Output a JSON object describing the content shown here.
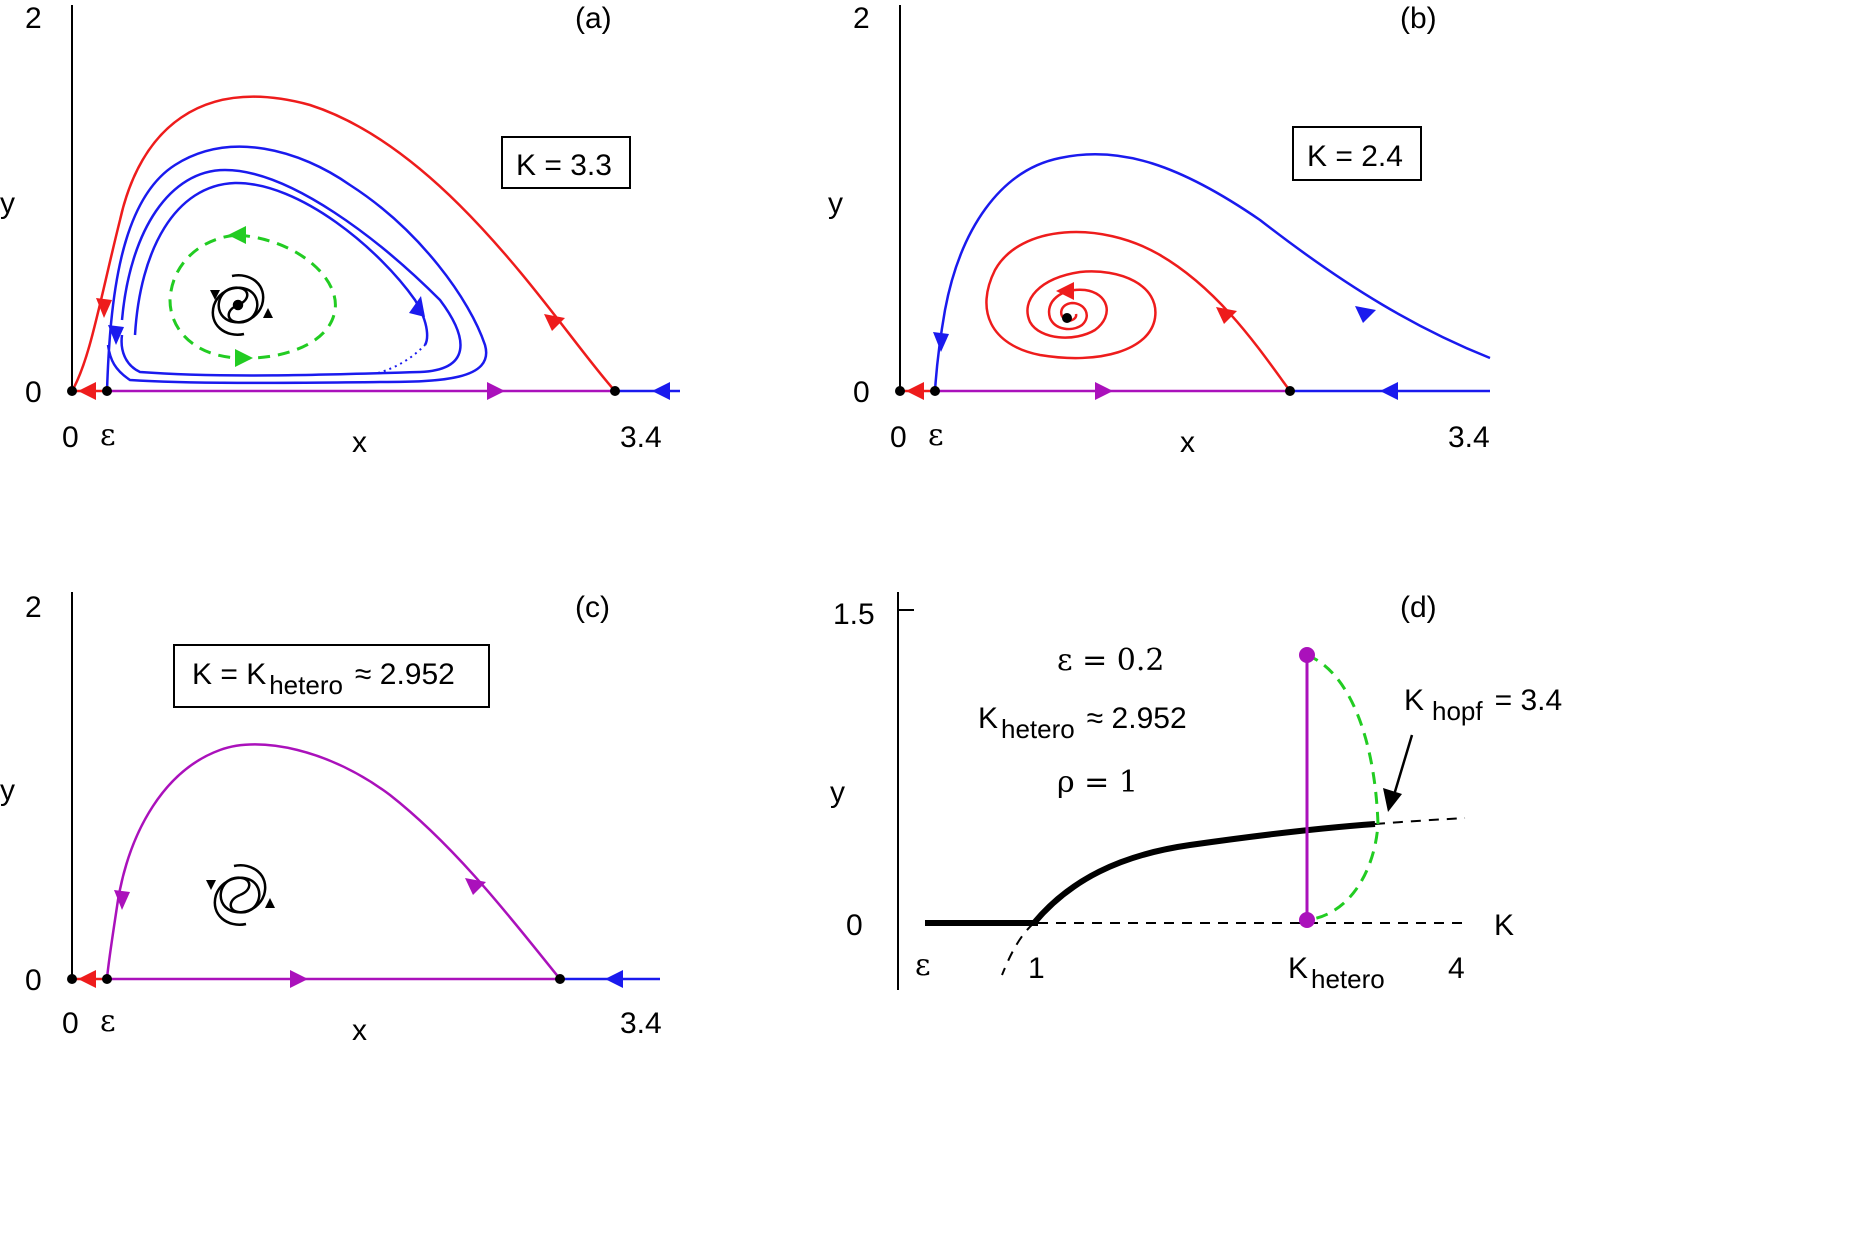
{
  "colors": {
    "red": "#ee1c1c",
    "blue": "#1a1aee",
    "purple": "#aa11bb",
    "green": "#22cc22",
    "black": "#000000"
  },
  "panels": {
    "a": {
      "label": "(a)",
      "param": "K = 3.3",
      "y_top": "2",
      "y_zero": "0",
      "x_zero": "0",
      "x_eps": "ε",
      "x_max": "3.4",
      "xlabel": "x",
      "ylabel": "y"
    },
    "b": {
      "label": "(b)",
      "param": "K = 2.4",
      "y_top": "2",
      "y_zero": "0",
      "x_zero": "0",
      "x_eps": "ε",
      "x_max": "3.4",
      "xlabel": "x",
      "ylabel": "y"
    },
    "c": {
      "label": "(c)",
      "param_prefix": "K =  K",
      "param_sub": "hetero",
      "param_suffix": "≈  2.952",
      "y_top": "2",
      "y_zero": "0",
      "x_zero": "0",
      "x_eps": "ε",
      "x_max": "3.4",
      "xlabel": "x",
      "ylabel": "y"
    },
    "d": {
      "label": "(d)",
      "y_top": "1.5",
      "y_zero": "0",
      "ylabel": "y",
      "xlabel": "K",
      "x_eps": "ε",
      "x_one": "1",
      "x_four": "4",
      "x_hetero_main": "K",
      "x_hetero_sub": "hetero",
      "eps_value": "ε = 0.2",
      "khetero_main": "K",
      "khetero_sub": "hetero",
      "khetero_value": "≈  2.952",
      "rho_value": "ρ = 1",
      "khopf_main": "K",
      "khopf_sub": "hopf",
      "khopf_value": "= 3.4"
    }
  }
}
